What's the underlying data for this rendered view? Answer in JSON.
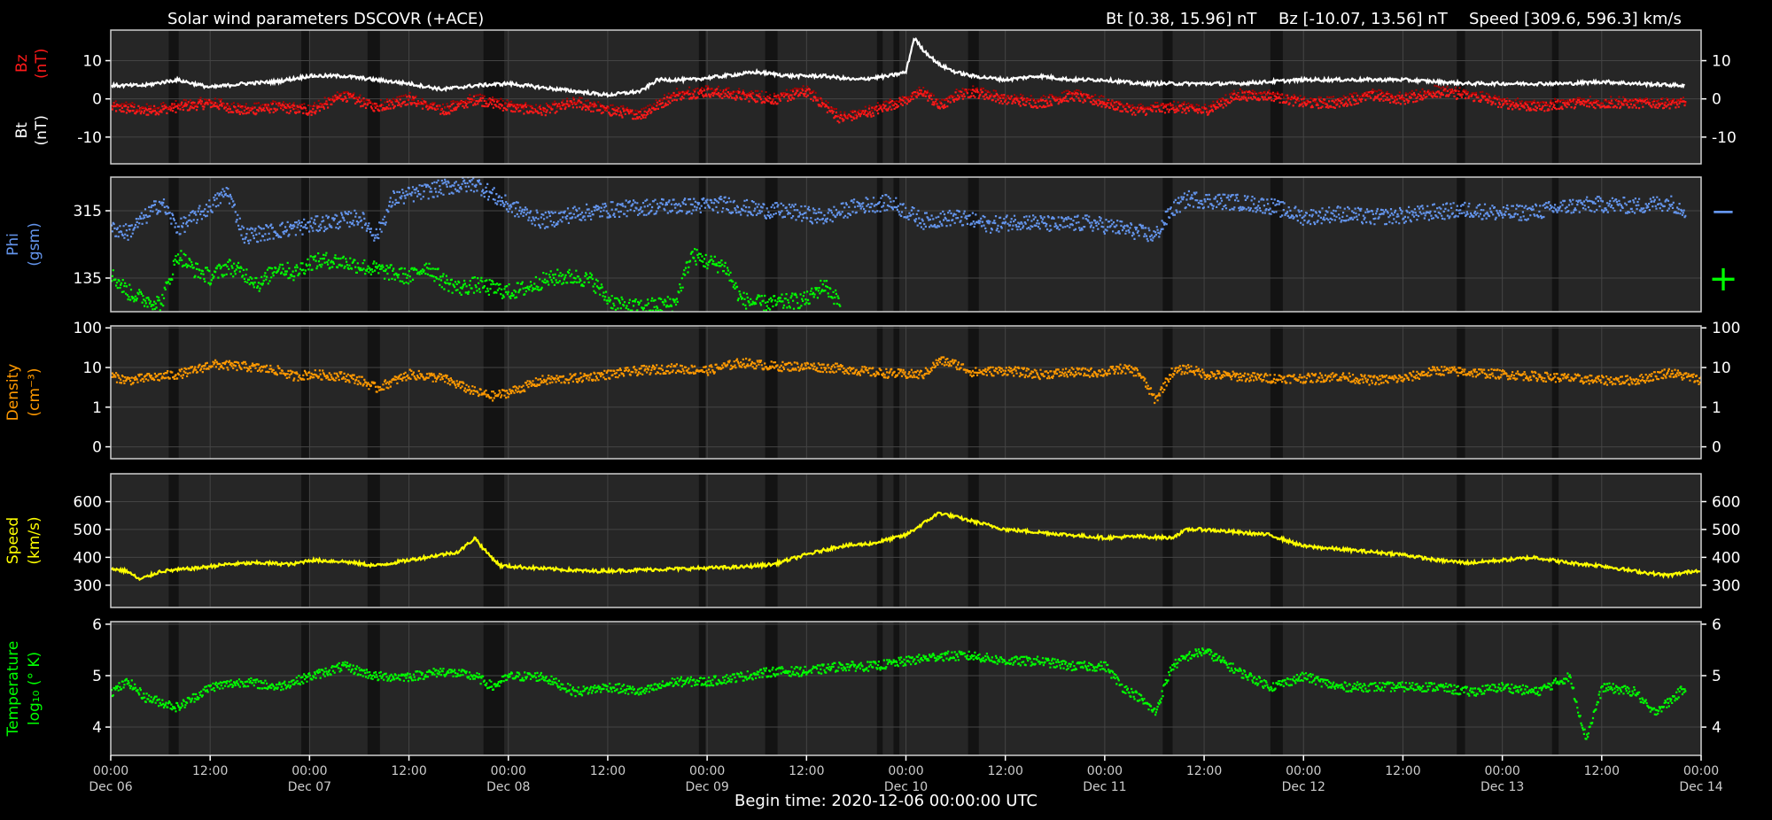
{
  "header": {
    "title": "Solar wind parameters DSCOVR (+ACE)",
    "bt_range": "Bt [0.38, 15.96] nT",
    "bz_range": "Bz [-10.07, 13.56] nT",
    "speed_range": "Speed [309.6, 596.3] km/s"
  },
  "footer": {
    "begin_time": "Begin time: 2020-12-06 00:00:00 UTC"
  },
  "colors": {
    "background": "#000000",
    "panel": "#262626",
    "grid": "#444444",
    "bz": "#ff1a1a",
    "bz_dark": "#b00000",
    "bt": "#ffffff",
    "phi_minus": "#6495ed",
    "phi_plus": "#00ff00",
    "density": "#ff9900",
    "speed": "#ffff00",
    "speed_ace": "#ffa500",
    "temperature": "#00ff00"
  },
  "legend_markers": {
    "phi_minus": "−",
    "phi_plus": "+"
  },
  "chart_data": {
    "type": "line",
    "x_axis": {
      "range_hours": [
        0,
        192
      ],
      "tick_hours": [
        0,
        12,
        24,
        36,
        48,
        60,
        72,
        84,
        96,
        108,
        120,
        132,
        144,
        156,
        168,
        180,
        192
      ],
      "tick_times": [
        "00:00",
        "12:00",
        "00:00",
        "12:00",
        "00:00",
        "12:00",
        "00:00",
        "12:00",
        "00:00",
        "12:00",
        "00:00",
        "12:00",
        "00:00",
        "12:00",
        "00:00",
        "12:00",
        "00:00"
      ],
      "tick_dates": [
        "Dec 06",
        "",
        "Dec 07",
        "",
        "Dec 08",
        "",
        "Dec 09",
        "",
        "Dec 10",
        "",
        "Dec 11",
        "",
        "Dec 12",
        "",
        "Dec 13",
        "",
        "Dec 14"
      ]
    },
    "data_gap_bands_hours": [
      [
        7,
        8.2
      ],
      [
        23,
        24
      ],
      [
        31,
        32.5
      ],
      [
        45,
        47.5
      ],
      [
        71,
        71.8
      ],
      [
        79,
        80.5
      ],
      [
        92.5,
        93.2
      ],
      [
        94.5,
        95.2
      ],
      [
        103.5,
        104.8
      ],
      [
        127,
        128.2
      ],
      [
        140,
        141.5
      ],
      [
        162.5,
        163.5
      ],
      [
        174,
        174.8
      ]
    ],
    "panels": [
      {
        "id": "bz-bt",
        "ylabels": [
          {
            "text": "Bz",
            "sub": "(nT)",
            "color": "#ff1a1a"
          },
          {
            "text": "Bt",
            "sub": "(nT)",
            "color": "#ffffff"
          }
        ],
        "ylim": [
          -17,
          18
        ],
        "yticks": [
          10,
          0,
          -10
        ],
        "ytick_labels": [
          "10",
          "0",
          "-10"
        ],
        "right_ticks": true,
        "series": [
          {
            "name": "Bz",
            "color": "#ff1a1a",
            "style": "dots",
            "x": [
              0,
              4,
              8,
              12,
              16,
              20,
              24,
              28,
              32,
              36,
              40,
              44,
              48,
              52,
              56,
              60,
              64,
              68,
              72,
              76,
              80,
              84,
              88,
              92,
              96,
              98,
              100,
              102,
              104,
              108,
              112,
              116,
              120,
              124,
              128,
              132,
              136,
              140,
              144,
              148,
              152,
              156,
              160,
              164,
              168,
              172,
              176,
              180,
              184,
              190
            ],
            "y": [
              -2,
              -3,
              -2,
              -1,
              -3,
              -2,
              -3,
              1,
              -2,
              0,
              -3,
              0,
              -2,
              -3,
              -1,
              -3,
              -4,
              1,
              2,
              1,
              0,
              2,
              -5,
              -3,
              0,
              2,
              -2,
              1,
              2,
              0,
              -1,
              1,
              -1,
              -3,
              -2,
              -3,
              1,
              1,
              -1,
              -1,
              1,
              0,
              2,
              1,
              -1,
              -2,
              -1,
              -1,
              -1,
              -1
            ]
          },
          {
            "name": "Bt",
            "color": "#ffffff",
            "style": "line",
            "x": [
              0,
              4,
              8,
              12,
              16,
              20,
              24,
              28,
              32,
              36,
              40,
              44,
              48,
              52,
              56,
              60,
              64,
              66,
              70,
              74,
              78,
              82,
              86,
              90,
              94,
              96,
              97,
              98,
              100,
              102,
              104,
              108,
              112,
              116,
              120,
              124,
              128,
              132,
              136,
              140,
              144,
              148,
              152,
              156,
              160,
              164,
              168,
              172,
              176,
              180,
              184,
              190
            ],
            "y": [
              3.5,
              3.5,
              5,
              3,
              4,
              4.5,
              6,
              6,
              5,
              4,
              2.5,
              3.5,
              4,
              3,
              2,
              1,
              2,
              5,
              5,
              6,
              7,
              6,
              6,
              5,
              6,
              7,
              16,
              13,
              9,
              7,
              6,
              5,
              6,
              5,
              5,
              4,
              4,
              4,
              4,
              4.5,
              5,
              5,
              5,
              5,
              4.5,
              4,
              4,
              4,
              4,
              4.5,
              4,
              3.5
            ]
          }
        ]
      },
      {
        "id": "phi",
        "ylabels": [
          {
            "text": "Phi",
            "sub": "(gsm)",
            "color": "#6495ed"
          }
        ],
        "ylim": [
          45,
          405
        ],
        "yticks": [
          315,
          135
        ],
        "ytick_labels": [
          "315",
          "135"
        ],
        "right_ticks": false,
        "series": [
          {
            "name": "Phi −",
            "color": "#6495ed",
            "style": "dots",
            "x": [
              0,
              2,
              4,
              6,
              8,
              12,
              14,
              16,
              30,
              32,
              34,
              40,
              44,
              48,
              50,
              52,
              56,
              60,
              66,
              70,
              74,
              78,
              82,
              86,
              90,
              94,
              98,
              102,
              106,
              110,
              114,
              118,
              122,
              126,
              128,
              130,
              132,
              136,
              140,
              144,
              148,
              152,
              156,
              160,
              164,
              168,
              172,
              176,
              180,
              184,
              188,
              190
            ],
            "y": [
              270,
              260,
              300,
              340,
              270,
              330,
              370,
              250,
              300,
              250,
              350,
              380,
              390,
              330,
              310,
              290,
              310,
              320,
              330,
              330,
              335,
              320,
              315,
              300,
              330,
              340,
              290,
              300,
              280,
              290,
              280,
              285,
              270,
              250,
              320,
              350,
              345,
              340,
              330,
              300,
              310,
              300,
              305,
              315,
              320,
              310,
              315,
              330,
              335,
              330,
              340,
              320
            ]
          },
          {
            "name": "Phi +",
            "color": "#00ff00",
            "style": "dots",
            "x": [
              0,
              2,
              4,
              6,
              8,
              10,
              12,
              14,
              16,
              18,
              20,
              22,
              24,
              26,
              28,
              30,
              32,
              34,
              36,
              38,
              40,
              42,
              44,
              46,
              48,
              50,
              52,
              54,
              56,
              58,
              60,
              62,
              64,
              66,
              68,
              70,
              72,
              74,
              76,
              78,
              80,
              82,
              84,
              86,
              88
            ],
            "y": [
              145,
              100,
              80,
              70,
              200,
              160,
              140,
              170,
              150,
              120,
              170,
              150,
              180,
              185,
              180,
              170,
              160,
              150,
              140,
              170,
              130,
              110,
              120,
              110,
              100,
              110,
              130,
              140,
              140,
              130,
              80,
              60,
              60,
              65,
              70,
              200,
              180,
              170,
              80,
              70,
              70,
              75,
              80,
              120,
              70
            ]
          }
        ]
      },
      {
        "id": "density",
        "ylabels": [
          {
            "text": "Density",
            "sub": "(cm⁻³)",
            "color": "#ff9900"
          }
        ],
        "ylim": [
          -1.3,
          2.05
        ],
        "yticks": [
          2,
          1,
          0,
          -1
        ],
        "ytick_labels": [
          "100",
          "10",
          "1",
          "0"
        ],
        "log_scale": true,
        "right_ticks": true,
        "series": [
          {
            "name": "Density",
            "color": "#ff9900",
            "style": "dots",
            "x": [
              0,
              2,
              4,
              6,
              8,
              10,
              12,
              16,
              20,
              22,
              24,
              28,
              30,
              32,
              36,
              40,
              44,
              46,
              48,
              52,
              56,
              60,
              64,
              68,
              72,
              76,
              80,
              84,
              88,
              92,
              96,
              98,
              100,
              102,
              104,
              108,
              112,
              116,
              120,
              122,
              124,
              126,
              128,
              130,
              132,
              136,
              140,
              144,
              148,
              152,
              156,
              160,
              164,
              168,
              172,
              176,
              180,
              184,
              188,
              192
            ],
            "y": [
              0.8,
              0.7,
              0.75,
              0.8,
              0.85,
              0.95,
              1.1,
              1.05,
              0.95,
              0.8,
              0.85,
              0.8,
              0.7,
              0.5,
              0.85,
              0.75,
              0.4,
              0.3,
              0.4,
              0.7,
              0.75,
              0.85,
              0.95,
              1.0,
              0.95,
              1.15,
              1.05,
              1.05,
              1.0,
              0.9,
              0.85,
              0.85,
              1.2,
              1.1,
              0.9,
              0.95,
              0.85,
              0.9,
              0.9,
              1.0,
              0.9,
              0.2,
              0.9,
              1.0,
              0.85,
              0.8,
              0.75,
              0.75,
              0.8,
              0.7,
              0.75,
              0.95,
              0.9,
              0.85,
              0.8,
              0.75,
              0.7,
              0.7,
              0.9,
              0.7
            ]
          }
        ]
      },
      {
        "id": "speed",
        "ylabels": [
          {
            "text": "Speed",
            "sub": "(km/s)",
            "color": "#ffff00"
          }
        ],
        "ylim": [
          220,
          700
        ],
        "yticks": [
          600,
          500,
          400,
          300
        ],
        "ytick_labels": [
          "600",
          "500",
          "400",
          "300"
        ],
        "right_ticks": true,
        "series": [
          {
            "name": "Speed",
            "color": "#ffff00",
            "style": "line",
            "x": [
              0,
              2,
              3.5,
              6,
              10,
              14,
              18,
              22,
              24,
              28,
              32,
              36,
              40,
              42,
              44,
              45,
              47,
              52,
              58,
              64,
              70,
              76,
              80,
              84,
              88,
              92,
              96,
              100,
              104,
              108,
              112,
              116,
              120,
              124,
              128,
              130,
              132,
              136,
              140,
              144,
              148,
              152,
              156,
              160,
              164,
              168,
              172,
              176,
              180,
              184,
              188,
              192
            ],
            "y": [
              360,
              350,
              320,
              350,
              360,
              375,
              380,
              375,
              390,
              385,
              370,
              390,
              410,
              420,
              470,
              430,
              370,
              360,
              350,
              355,
              360,
              365,
              375,
              410,
              440,
              450,
              480,
              560,
              530,
              500,
              490,
              480,
              470,
              475,
              470,
              500,
              500,
              490,
              480,
              440,
              430,
              420,
              410,
              390,
              380,
              390,
              400,
              380,
              370,
              350,
              335,
              355
            ]
          }
        ]
      },
      {
        "id": "temperature",
        "ylabels": [
          {
            "text": "Temperature",
            "sub": "log₁₀ (° K)",
            "color": "#00ff00"
          }
        ],
        "ylim": [
          3.45,
          6.05
        ],
        "yticks": [
          6,
          5,
          4
        ],
        "ytick_labels": [
          "6",
          "5",
          "4"
        ],
        "right_ticks": true,
        "series": [
          {
            "name": "Temperature",
            "color": "#00ff00",
            "style": "dots",
            "x": [
              0,
              2,
              4,
              6,
              8,
              10,
              12,
              16,
              20,
              24,
              28,
              32,
              36,
              40,
              44,
              46,
              48,
              52,
              56,
              60,
              64,
              68,
              72,
              76,
              80,
              84,
              88,
              92,
              96,
              100,
              104,
              108,
              112,
              116,
              120,
              122,
              124,
              126,
              128,
              130,
              132,
              134,
              136,
              140,
              144,
              148,
              152,
              156,
              160,
              164,
              168,
              172,
              176,
              178,
              180,
              184,
              186,
              188,
              190
            ],
            "y": [
              4.7,
              4.9,
              4.6,
              4.5,
              4.4,
              4.6,
              4.8,
              4.9,
              4.8,
              5.0,
              5.2,
              5.0,
              5.0,
              5.1,
              5.0,
              4.8,
              5.0,
              5.0,
              4.7,
              4.8,
              4.7,
              4.9,
              4.9,
              5.0,
              5.1,
              5.1,
              5.2,
              5.2,
              5.3,
              5.4,
              5.4,
              5.3,
              5.3,
              5.2,
              5.2,
              4.8,
              4.6,
              4.3,
              5.2,
              5.4,
              5.5,
              5.3,
              5.1,
              4.8,
              5.0,
              4.8,
              4.8,
              4.8,
              4.8,
              4.7,
              4.8,
              4.7,
              5.0,
              3.8,
              4.8,
              4.7,
              4.3,
              4.5,
              4.8
            ]
          }
        ]
      }
    ]
  }
}
